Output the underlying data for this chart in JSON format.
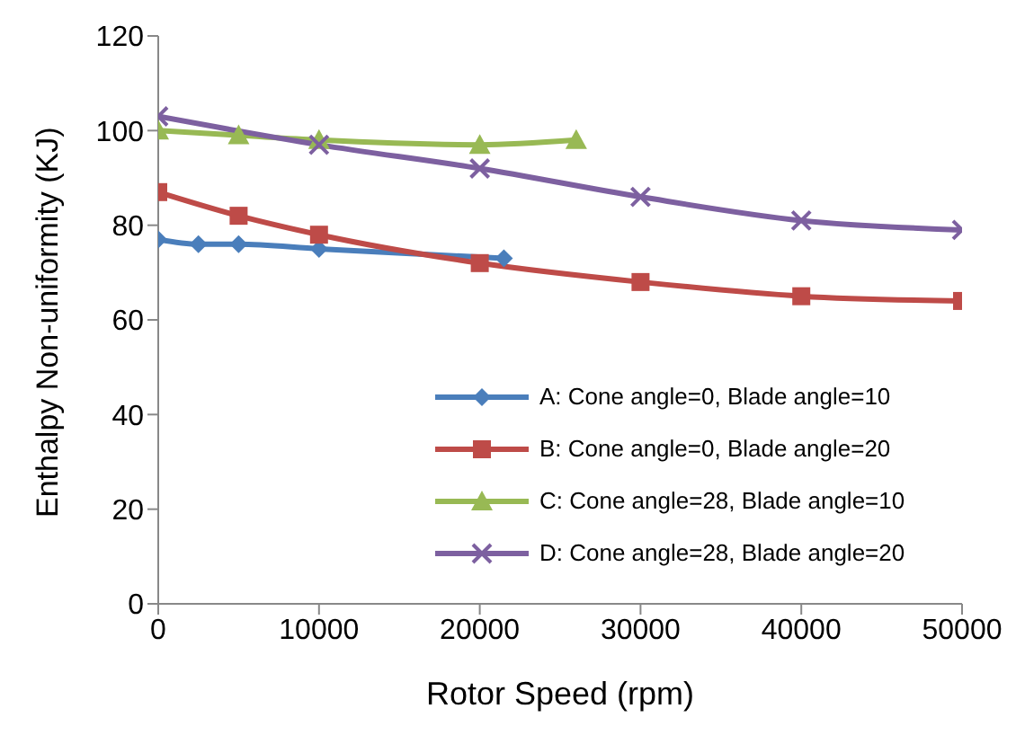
{
  "chart_data": {
    "type": "line",
    "xlabel": "Rotor Speed (rpm)",
    "ylabel": "Enthalpy Non-uniformity (KJ)",
    "xlim": [
      0,
      50000
    ],
    "xticks": [
      0,
      10000,
      20000,
      30000,
      40000,
      50000
    ],
    "ylim": [
      0,
      120
    ],
    "yticks": [
      0,
      20,
      40,
      60,
      80,
      100,
      120
    ],
    "grid": false,
    "legend": "bottom right",
    "series": [
      {
        "name": "A: Cone angle=0, Blade angle=10",
        "color": "#4a7ebb",
        "marker": "diamond",
        "x": [
          0,
          2500,
          5000,
          10000,
          21500
        ],
        "values": [
          77,
          76,
          76,
          75,
          73
        ]
      },
      {
        "name": "B: Cone angle=0, Blade angle=20",
        "color": "#be4b48",
        "marker": "square",
        "x": [
          0,
          5000,
          10000,
          20000,
          30000,
          40000,
          50000
        ],
        "values": [
          87,
          82,
          78,
          72,
          68,
          65,
          64
        ]
      },
      {
        "name": "C: Cone angle=28, Blade angle=10",
        "color": "#98b954",
        "marker": "triangle",
        "x": [
          0,
          5000,
          10000,
          20000,
          26000
        ],
        "values": [
          100,
          99,
          98,
          97,
          98
        ]
      },
      {
        "name": "D: Cone angle=28, Blade angle=20",
        "color": "#7d60a0",
        "marker": "cross",
        "x": [
          0,
          10000,
          20000,
          30000,
          40000,
          50000
        ],
        "values": [
          103,
          97,
          92,
          86,
          81,
          79
        ]
      }
    ]
  }
}
